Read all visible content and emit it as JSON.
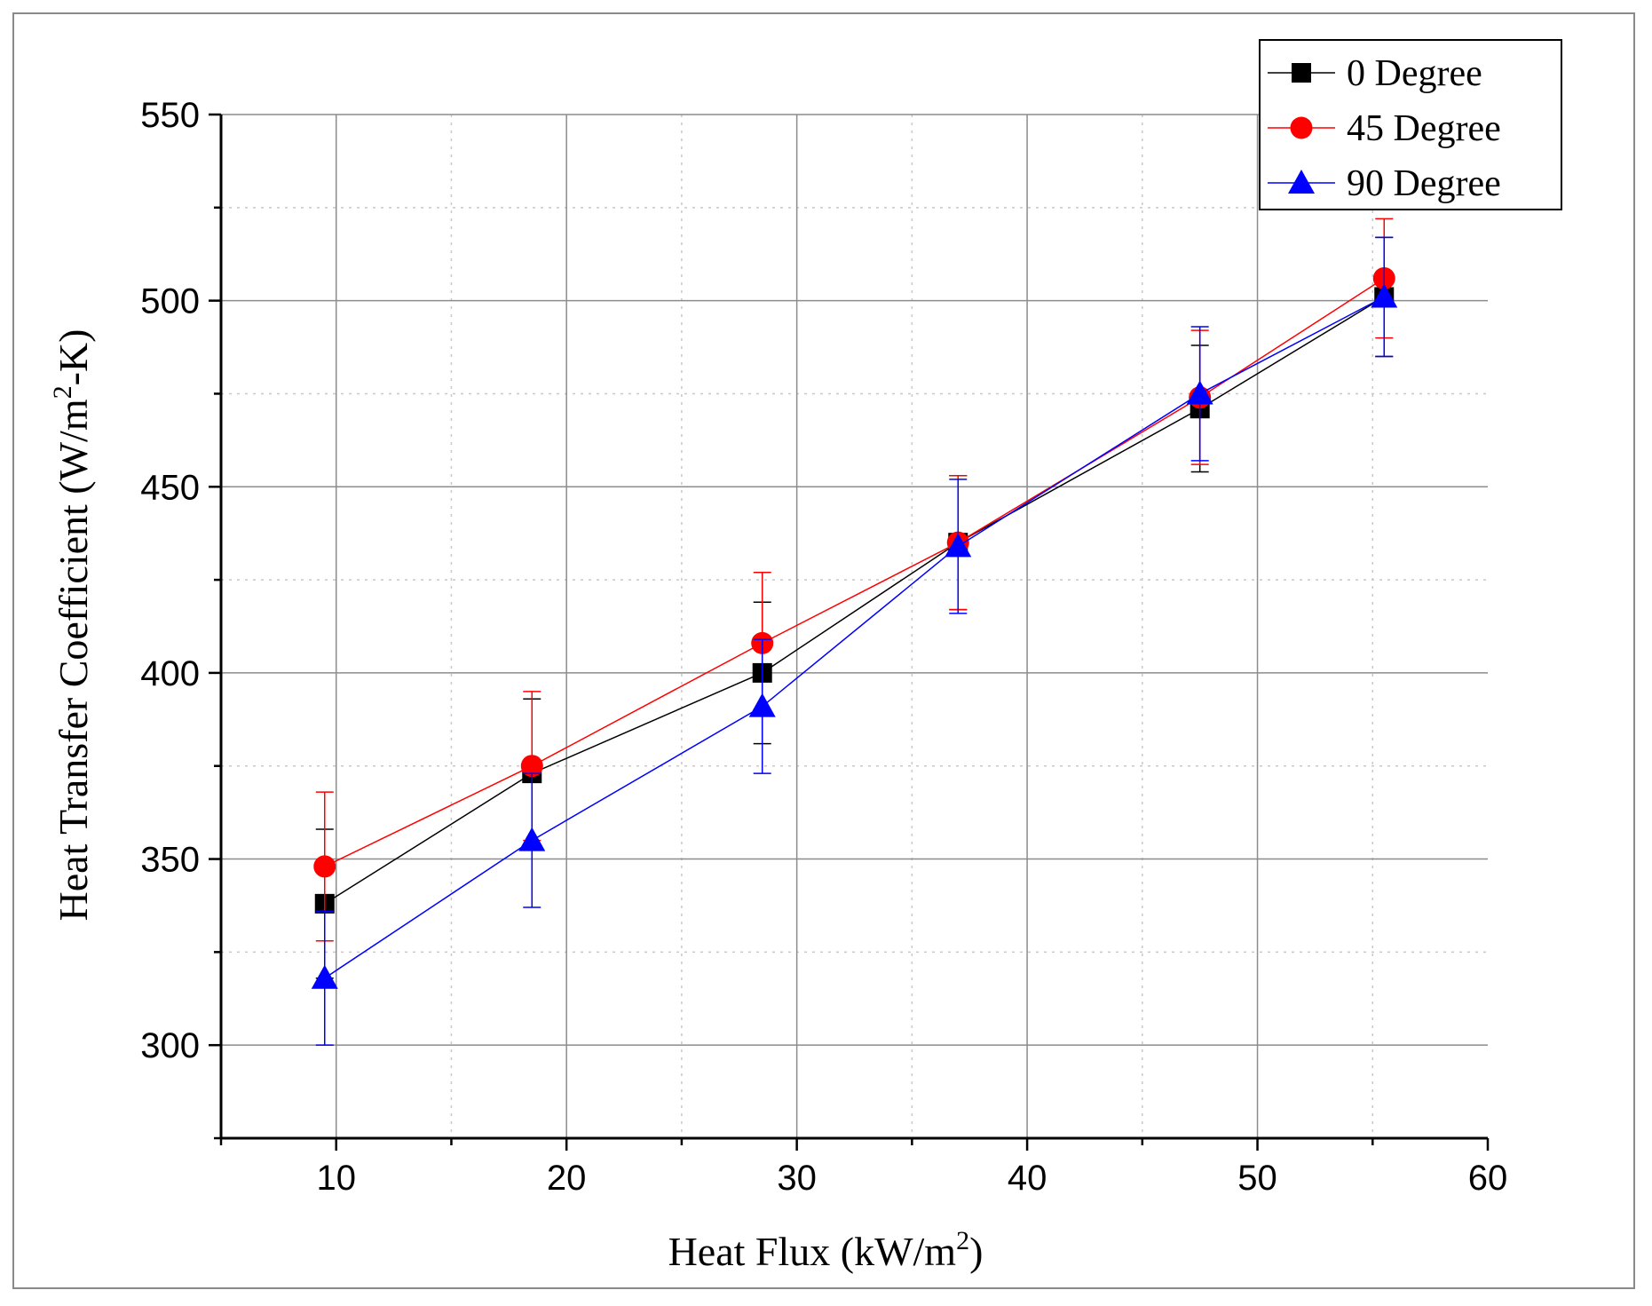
{
  "chart_data": {
    "type": "line",
    "title": "",
    "xlabel_main": "Heat Flux (kW/m",
    "xlabel_sup": "2",
    "xlabel_end": ")",
    "ylabel_main": "Heat Transfer Coefficient (W/m",
    "ylabel_sup": "2",
    "ylabel_end": "-K)",
    "xlim": [
      5,
      60
    ],
    "ylim": [
      275,
      550
    ],
    "xticks": [
      10,
      20,
      30,
      40,
      50,
      60
    ],
    "yticks": [
      300,
      350,
      400,
      450,
      500,
      550
    ],
    "grid": true,
    "legend_position": "top-right",
    "series": [
      {
        "name": "0 Degree",
        "color": "#000000",
        "marker": "square",
        "x": [
          9.5,
          18.5,
          28.5,
          37.0,
          47.5,
          55.5
        ],
        "y": [
          338,
          373,
          400,
          435,
          471,
          501
        ],
        "err": [
          20,
          20,
          19,
          18,
          17,
          16
        ]
      },
      {
        "name": "45 Degree",
        "color": "#ff0000",
        "marker": "circle",
        "x": [
          9.5,
          18.5,
          28.5,
          37.0,
          47.5,
          55.5
        ],
        "y": [
          348,
          375,
          408,
          435,
          474,
          506
        ],
        "err": [
          20,
          20,
          19,
          18,
          18,
          16
        ]
      },
      {
        "name": "90 Degree",
        "color": "#0000ff",
        "marker": "triangle",
        "x": [
          9.5,
          18.5,
          28.5,
          37.0,
          47.5,
          55.5
        ],
        "y": [
          318,
          355,
          391,
          434,
          475,
          501
        ],
        "err": [
          18,
          18,
          18,
          18,
          18,
          16
        ]
      }
    ]
  }
}
